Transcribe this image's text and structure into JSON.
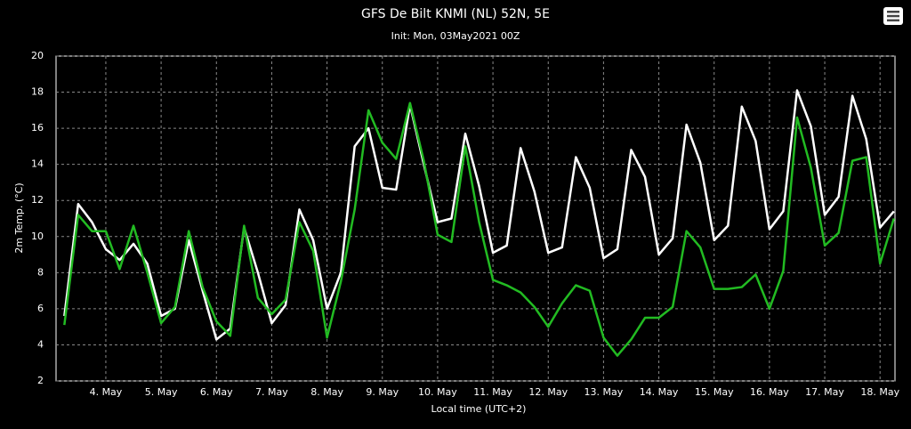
{
  "chart_data": {
    "type": "line",
    "title": "GFS De Bilt KNMI (NL) 52N, 5E",
    "subtitle": "Init: Mon, 03May2021 00Z",
    "x_label": "Local time (UTC+2)",
    "y_label": "2m Temp. (°C)",
    "x": [
      3.25,
      3.5,
      3.75,
      4,
      4.25,
      4.5,
      4.75,
      5,
      5.25,
      5.5,
      5.75,
      6,
      6.25,
      6.5,
      6.75,
      7,
      7.25,
      7.5,
      7.75,
      8,
      8.25,
      8.5,
      8.75,
      9,
      9.25,
      9.5,
      9.75,
      10,
      10.25,
      10.5,
      10.75,
      11,
      11.25,
      11.5,
      11.75,
      12,
      12.25,
      12.5,
      12.75,
      13,
      13.25,
      13.5,
      13.75,
      14,
      14.25,
      14.5,
      14.75,
      15,
      15.25,
      15.5,
      15.75,
      16,
      16.25,
      16.5,
      16.75,
      17,
      17.25,
      17.5,
      17.75,
      18,
      18.25
    ],
    "series": [
      {
        "color": "#ffffff",
        "values": [
          5.6,
          11.8,
          10.8,
          9.3,
          8.7,
          9.6,
          8.5,
          5.6,
          6.0,
          9.8,
          7.0,
          4.3,
          4.9,
          10.5,
          8.0,
          5.2,
          6.2,
          11.5,
          9.8,
          6.0,
          8.0,
          15.0,
          16.0,
          12.7,
          12.6,
          17.3,
          14.0,
          10.8,
          11.0,
          15.7,
          12.8,
          9.1,
          9.5,
          14.9,
          12.5,
          9.1,
          9.4,
          14.4,
          12.7,
          8.8,
          9.3,
          14.8,
          13.3,
          9.0,
          9.9,
          16.2,
          14.1,
          9.8,
          10.6,
          17.2,
          15.3,
          10.4,
          11.4,
          18.1,
          16.1,
          11.2,
          12.2,
          17.8,
          15.4,
          10.5,
          11.4
        ]
      },
      {
        "color": "#22bb22",
        "values": [
          5.1,
          11.2,
          10.3,
          10.3,
          8.2,
          10.6,
          8.0,
          5.2,
          6.1,
          10.3,
          7.2,
          5.3,
          4.5,
          10.6,
          6.6,
          5.7,
          6.5,
          10.8,
          9.2,
          4.4,
          7.5,
          11.5,
          17.0,
          15.2,
          14.3,
          17.4,
          14.2,
          10.1,
          9.7,
          15.0,
          10.8,
          7.6,
          7.3,
          6.9,
          6.1,
          5.0,
          6.3,
          7.3,
          7.0,
          4.4,
          3.4,
          4.3,
          5.5,
          5.5,
          6.1,
          10.3,
          9.4,
          7.1,
          7.1,
          7.2,
          7.9,
          6.0,
          8.1,
          16.6,
          13.8,
          9.5,
          10.2,
          14.2,
          14.4,
          8.5,
          11.0
        ]
      }
    ],
    "xlim": [
      3.1,
      18.27
    ],
    "xticks": [
      {
        "value": 4,
        "label": "4. May"
      },
      {
        "value": 5,
        "label": "5. May"
      },
      {
        "value": 6,
        "label": "6. May"
      },
      {
        "value": 7,
        "label": "7. May"
      },
      {
        "value": 8,
        "label": "8. May"
      },
      {
        "value": 9,
        "label": "9. May"
      },
      {
        "value": 10,
        "label": "10. May"
      },
      {
        "value": 11,
        "label": "11. May"
      },
      {
        "value": 12,
        "label": "12. May"
      },
      {
        "value": 13,
        "label": "13. May"
      },
      {
        "value": 14,
        "label": "14. May"
      },
      {
        "value": 15,
        "label": "15. May"
      },
      {
        "value": 16,
        "label": "16. May"
      },
      {
        "value": 17,
        "label": "17. May"
      },
      {
        "value": 18,
        "label": "18. May"
      }
    ],
    "ylim": [
      2,
      20
    ],
    "yticks": [
      2,
      4,
      6,
      8,
      10,
      12,
      14,
      16,
      18,
      20
    ],
    "grid": true
  }
}
